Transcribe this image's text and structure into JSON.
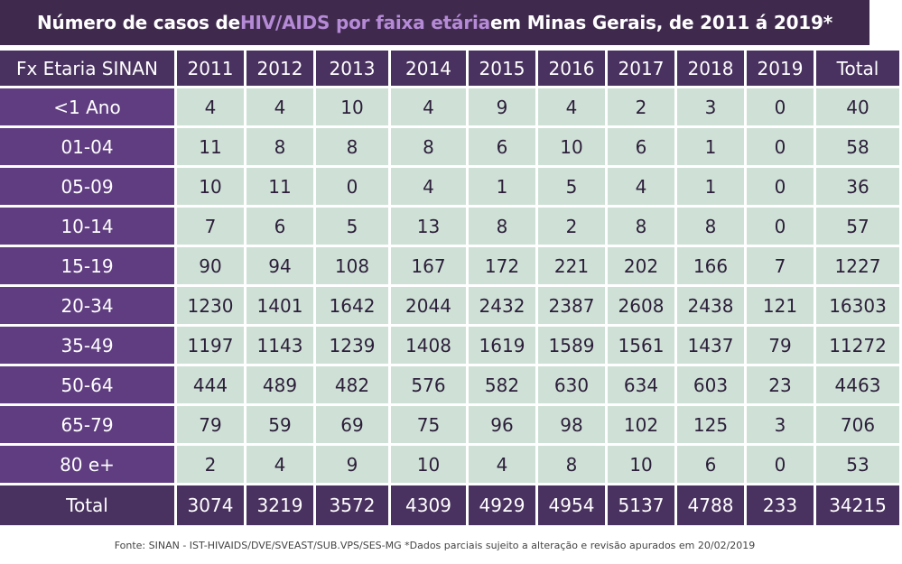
{
  "title": {
    "before": "Número de casos de ",
    "highlight": "HIV/AIDS por faixa etária",
    "after": " em Minas Gerais, de 2011 á 2019*"
  },
  "colors": {
    "title_bg": "#3f2a4d",
    "title_highlight": "#b58ad6",
    "header_bg": "#4a3260",
    "row_label_bg": "#5f3d80",
    "cell_bg": "#cfe1d6"
  },
  "chart_data": {
    "type": "table",
    "title": "Número de casos de HIV/AIDS por faixa etária em Minas Gerais, de 2011 á 2019*",
    "columns": [
      "Fx Etaria SINAN",
      "2011",
      "2012",
      "2013",
      "2014",
      "2015",
      "2016",
      "2017",
      "2018",
      "2019",
      "Total"
    ],
    "rows": [
      {
        "label": "<1 Ano",
        "values": [
          "4",
          "4",
          "10",
          "4",
          "9",
          "4",
          "2",
          "3",
          "0",
          "40"
        ]
      },
      {
        "label": "01-04",
        "values": [
          "11",
          "8",
          "8",
          "8",
          "6",
          "10",
          "6",
          "1",
          "0",
          "58"
        ]
      },
      {
        "label": "05-09",
        "values": [
          "10",
          "11",
          "0",
          "4",
          "1",
          "5",
          "4",
          "1",
          "0",
          "36"
        ]
      },
      {
        "label": "10-14",
        "values": [
          "7",
          "6",
          "5",
          "13",
          "8",
          "2",
          "8",
          "8",
          "0",
          "57"
        ]
      },
      {
        "label": "15-19",
        "values": [
          "90",
          "94",
          "108",
          "167",
          "172",
          "221",
          "202",
          "166",
          "7",
          "1227"
        ]
      },
      {
        "label": "20-34",
        "values": [
          "1230",
          "1401",
          "1642",
          "2044",
          "2432",
          "2387",
          "2608",
          "2438",
          "121",
          "16303"
        ]
      },
      {
        "label": "35-49",
        "values": [
          "1197",
          "1143",
          "1239",
          "1408",
          "1619",
          "1589",
          "1561",
          "1437",
          "79",
          "11272"
        ]
      },
      {
        "label": "50-64",
        "values": [
          "444",
          "489",
          "482",
          "576",
          "582",
          "630",
          "634",
          "603",
          "23",
          "4463"
        ]
      },
      {
        "label": "65-79",
        "values": [
          "79",
          "59",
          "69",
          "75",
          "96",
          "98",
          "102",
          "125",
          "3",
          "706"
        ]
      },
      {
        "label": "80 e+",
        "values": [
          "2",
          "4",
          "9",
          "10",
          "4",
          "8",
          "10",
          "6",
          "0",
          "53"
        ]
      }
    ],
    "total_row": {
      "label": "Total",
      "values": [
        "3074",
        "3219",
        "3572",
        "4309",
        "4929",
        "4954",
        "5137",
        "4788",
        "233",
        "34215"
      ]
    }
  },
  "footer": "Fonte: SINAN - IST-HIVAIDS/DVE/SVEAST/SUB.VPS/SES-MG  *Dados parciais sujeito a alteração e revisão apurados em 20/02/2019"
}
